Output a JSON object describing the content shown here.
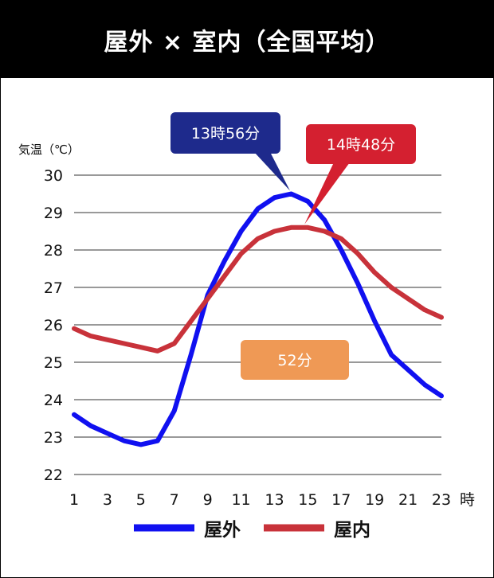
{
  "chart_data": {
    "type": "line",
    "title": "屋外 × 室内（全国平均）",
    "ylabel": "気温（℃）",
    "x_unit_label": "時",
    "ylim": [
      22,
      30
    ],
    "yticks": [
      "22",
      "23",
      "24",
      "25",
      "26",
      "27",
      "28",
      "29",
      "30"
    ],
    "x": [
      1,
      2,
      3,
      4,
      5,
      6,
      7,
      8,
      9,
      10,
      11,
      12,
      13,
      14,
      15,
      16,
      17,
      18,
      19,
      20,
      21,
      22,
      23
    ],
    "xtick_labels": [
      "1",
      "3",
      "5",
      "7",
      "9",
      "11",
      "13",
      "15",
      "17",
      "19",
      "21",
      "23"
    ],
    "grid": true,
    "legend_placement": "bottom",
    "series": [
      {
        "name": "屋外",
        "color": "#1010f0",
        "values": [
          23.6,
          23.3,
          23.1,
          22.9,
          22.8,
          22.9,
          23.7,
          25.2,
          26.8,
          27.7,
          28.5,
          29.1,
          29.4,
          29.5,
          29.3,
          28.8,
          28.0,
          27.1,
          26.1,
          25.2,
          24.8,
          24.4,
          24.1
        ]
      },
      {
        "name": "屋内",
        "color": "#c8323a",
        "values": [
          25.9,
          25.7,
          25.6,
          25.5,
          25.4,
          25.3,
          25.5,
          26.1,
          26.7,
          27.3,
          27.9,
          28.3,
          28.5,
          28.6,
          28.6,
          28.5,
          28.3,
          27.9,
          27.4,
          27.0,
          26.7,
          26.4,
          26.2
        ]
      }
    ],
    "annotations": {
      "outdoor_peak": {
        "text": "13時56分",
        "color": "#1e2a8c",
        "x": 13.93,
        "y": 29.5
      },
      "indoor_peak": {
        "text": "14時48分",
        "color": "#d42030",
        "x": 14.8,
        "y": 28.6
      },
      "lag": {
        "text": "52分",
        "color": "#ef9955"
      }
    }
  }
}
